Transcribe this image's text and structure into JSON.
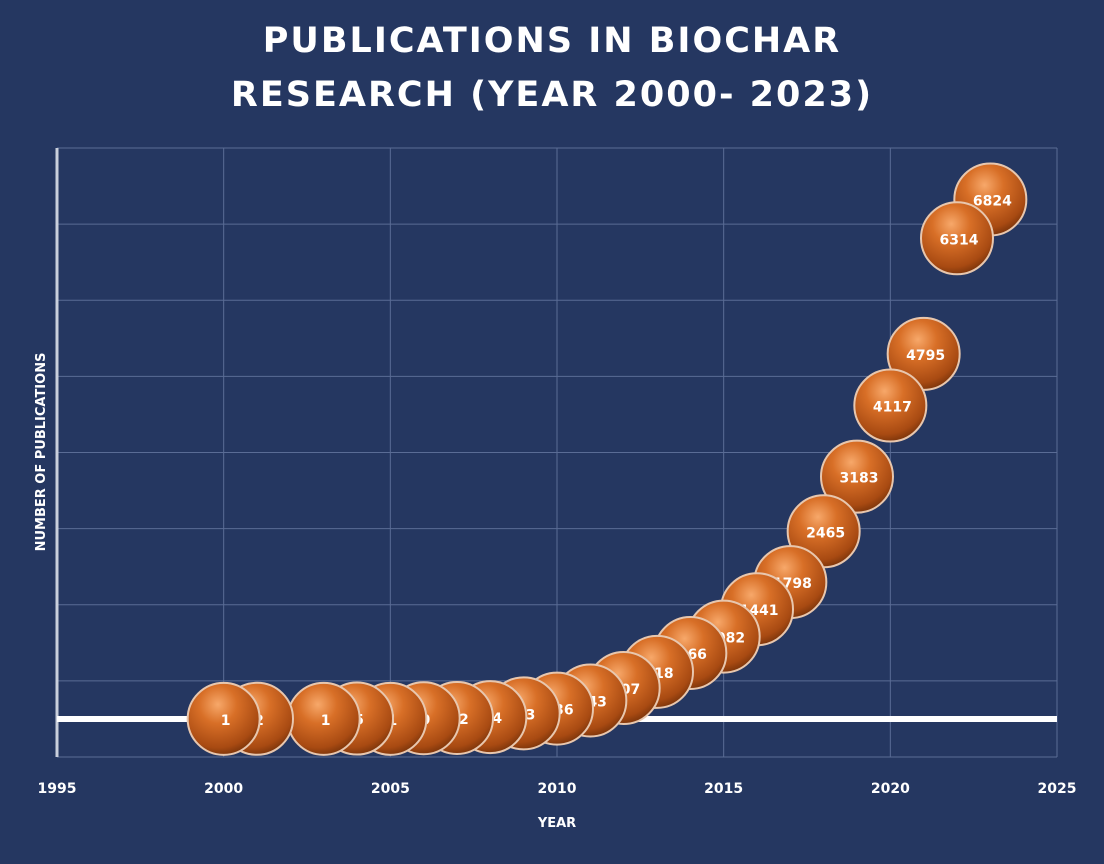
{
  "chart_data": {
    "type": "scatter",
    "title_lines": [
      "PUBLICATIONS IN BIOCHAR",
      "RESEARCH (YEAR 2000- 2023)"
    ],
    "xlabel": "YEAR",
    "ylabel": "NUMBER OF PUBLICATIONS",
    "xlim": [
      1995,
      2025
    ],
    "x_major_unit": 5,
    "ylim": [
      -500,
      7500
    ],
    "y_major_unit": 1000,
    "y_tick_labels_shown": false,
    "grid": true,
    "marker": "bubble",
    "marker_color": "#c8621e",
    "background_color": "#253761",
    "x_tick_labels": [
      "1995",
      "2000",
      "2005",
      "2010",
      "2015",
      "2020",
      "2025"
    ],
    "x": [
      2000,
      2001,
      2003,
      2004,
      2005,
      2006,
      2007,
      2008,
      2009,
      2010,
      2011,
      2012,
      2013,
      2014,
      2015,
      2016,
      2017,
      2018,
      2019,
      2020,
      2021,
      2022,
      2023
    ],
    "values": [
      1,
      2,
      1,
      5,
      1,
      9,
      12,
      24,
      73,
      136,
      243,
      407,
      618,
      866,
      1082,
      1441,
      1798,
      2465,
      3183,
      4117,
      4795,
      6314,
      6824
    ],
    "data_labels": [
      "1",
      "2",
      "1",
      "5",
      "1",
      "9",
      "12",
      "24",
      "73",
      "136",
      "243",
      "407",
      "618",
      "866",
      "1082",
      "1441",
      "1798",
      "2465",
      "3183",
      "4117",
      "4795",
      "6314",
      "6824"
    ]
  }
}
